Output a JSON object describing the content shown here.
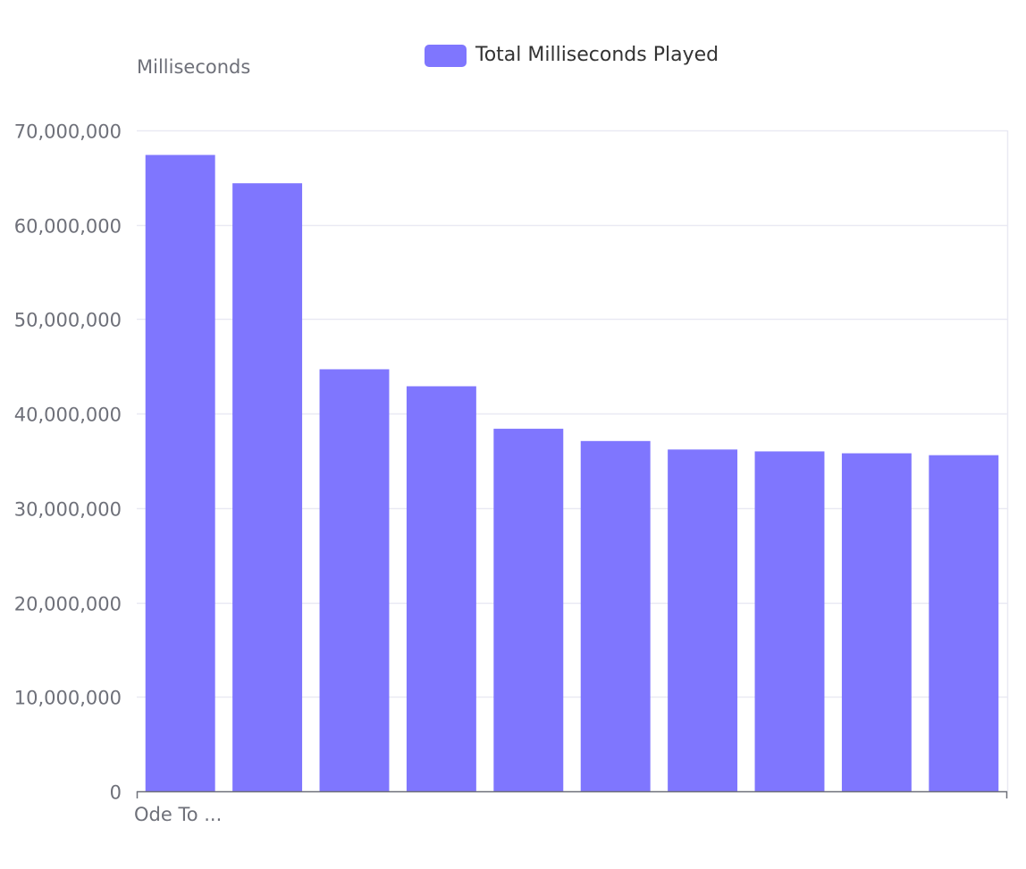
{
  "chart_data": {
    "type": "bar",
    "ylabel": "Milliseconds",
    "legend": {
      "position": "top-center",
      "entries": [
        {
          "name": "Total Milliseconds Played",
          "color": "#7f76fe"
        }
      ]
    },
    "ylim": [
      0,
      70000000
    ],
    "yticks": [
      "0",
      "10,000,000",
      "20,000,000",
      "30,000,000",
      "40,000,000",
      "50,000,000",
      "60,000,000",
      "70,000,000"
    ],
    "ytick_values": [
      0,
      10000000,
      20000000,
      30000000,
      40000000,
      50000000,
      60000000,
      70000000
    ],
    "visible_xtick_label": "Ode To ...",
    "grid": true,
    "series": [
      {
        "name": "Total Milliseconds Played",
        "color": "#7f76fe",
        "values": [
          67400000,
          64400000,
          44700000,
          42900000,
          38400000,
          37100000,
          36200000,
          36000000,
          35800000,
          35600000
        ]
      }
    ]
  },
  "colors": {
    "bar": "#7f76fe",
    "grid": "#e9e9f3",
    "axis": "#6e7079",
    "text": "#6e7079",
    "legend_text": "#333333"
  }
}
